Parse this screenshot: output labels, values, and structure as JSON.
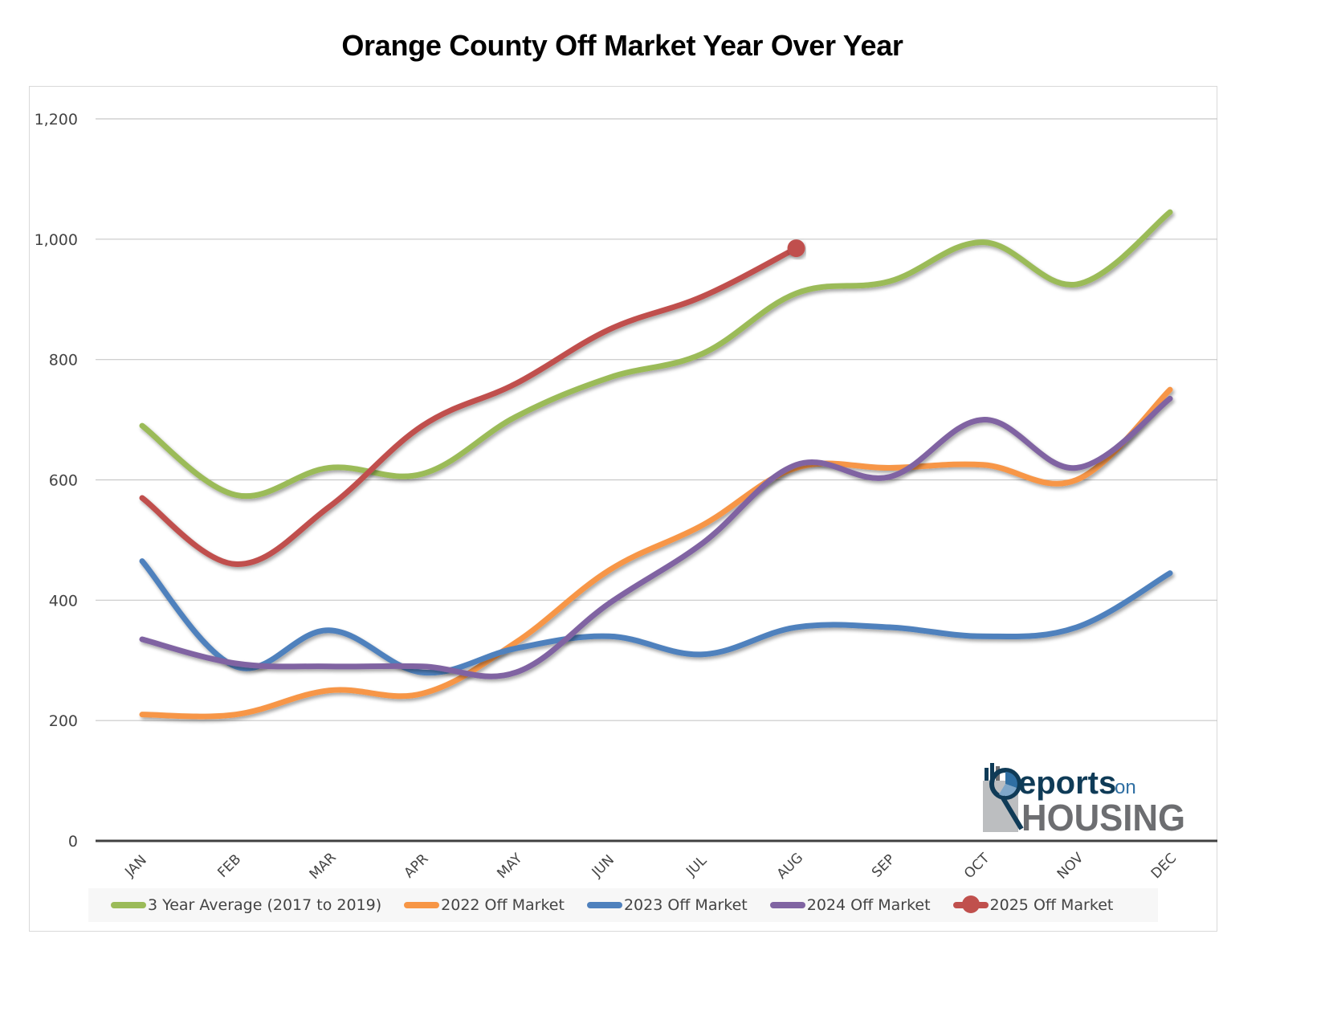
{
  "chart_data": {
    "type": "line",
    "title": "Orange County Off Market Year Over Year",
    "xlabel": "",
    "ylabel": "",
    "categories": [
      "JAN",
      "FEB",
      "MAR",
      "APR",
      "MAY",
      "JUN",
      "JUL",
      "AUG",
      "SEP",
      "OCT",
      "NOV",
      "DEC"
    ],
    "ylim": [
      0,
      1200
    ],
    "yticks": [
      0,
      200,
      400,
      600,
      800,
      1000,
      1200
    ],
    "ytick_labels": [
      "0",
      "200",
      "400",
      "600",
      "800",
      "1,000",
      "1,200"
    ],
    "grid": true,
    "smooth": true,
    "legend_position": "bottom",
    "values_note": "Values estimated visually from the unlabeled chart; rounded to nearest 5, accurate to roughly ±15. Not source data.",
    "series": [
      {
        "name": "3 Year Average (2017 to 2019)",
        "color": "#9BBB59",
        "values": [
          690,
          575,
          620,
          610,
          705,
          770,
          810,
          910,
          930,
          995,
          925,
          1045
        ]
      },
      {
        "name": "2022 Off Market",
        "color": "#F79646",
        "values": [
          210,
          210,
          250,
          245,
          330,
          450,
          525,
          620,
          620,
          625,
          600,
          750
        ]
      },
      {
        "name": "2023 Off Market",
        "color": "#4F81BD",
        "values": [
          465,
          290,
          350,
          280,
          320,
          340,
          310,
          355,
          355,
          340,
          355,
          445
        ]
      },
      {
        "name": "2024 Off Market",
        "color": "#8064A2",
        "values": [
          335,
          295,
          290,
          290,
          280,
          395,
          495,
          625,
          605,
          700,
          620,
          735
        ]
      },
      {
        "name": "2025 Off Market",
        "color": "#C0504D",
        "values": [
          570,
          460,
          555,
          690,
          760,
          850,
          905,
          985,
          null,
          null,
          null,
          null
        ],
        "end_marker": true
      }
    ]
  },
  "logo": {
    "line1": "eports",
    "line1_suffix": "on",
    "line2": "HOUSING",
    "colors": {
      "navy": "#0F3B57",
      "gray": "#6D6E71",
      "light_gray": "#BCBEC0",
      "blue": "#2F6FA3"
    }
  }
}
